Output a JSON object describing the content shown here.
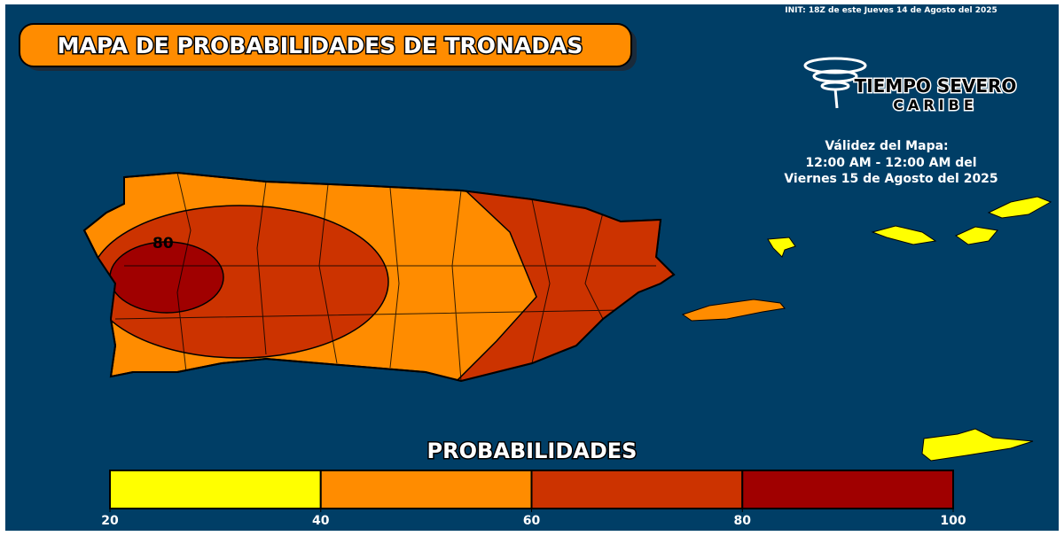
{
  "header": {
    "init": "INIT: 18Z de este Jueves 14 de Agosto del 2025",
    "title": "MAPA DE PROBABILIDADES DE TRONADAS"
  },
  "logo": {
    "name": "TIEMPO SEVERO",
    "sub": "CARIBE"
  },
  "validity": [
    "Válidez del Mapa:",
    "12:00 AM - 12:00 AM del",
    "Viernes 15 de Agosto del 2025"
  ],
  "map": {
    "contour_labels": [
      "80"
    ]
  },
  "legend": {
    "title": "PROBABILIDADES",
    "ticks": [
      20,
      40,
      60,
      80,
      100
    ],
    "colors": [
      "#ffff00",
      "#ff8c00",
      "#cc3300",
      "#a00000"
    ]
  }
}
